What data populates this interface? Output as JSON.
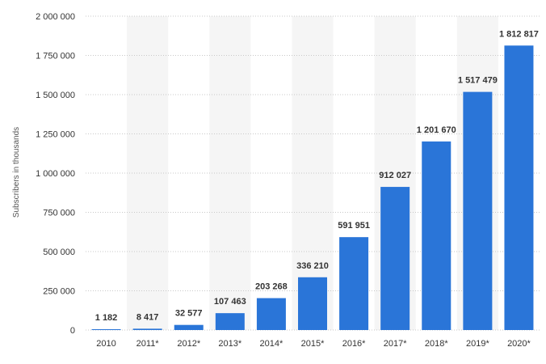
{
  "chart_data": {
    "type": "bar",
    "ylabel": "Subscribers in thousands",
    "xlabel": "",
    "ylim": [
      0,
      2000000
    ],
    "yticks": [
      0,
      250000,
      500000,
      750000,
      1000000,
      1250000,
      1500000,
      1750000,
      2000000
    ],
    "ytick_labels": [
      "0",
      "250 000",
      "500 000",
      "750 000",
      "1 000 000",
      "1 250 000",
      "1 500 000",
      "1 750 000",
      "2 000 000"
    ],
    "categories": [
      "2010",
      "2011*",
      "2012*",
      "2013*",
      "2014*",
      "2015*",
      "2016*",
      "2017*",
      "2018*",
      "2019*",
      "2020*"
    ],
    "values": [
      1182,
      8417,
      32577,
      107463,
      203268,
      336210,
      591951,
      912027,
      1201670,
      1517479,
      1812817
    ],
    "value_labels": [
      "1 182",
      "8 417",
      "32 577",
      "107 463",
      "203 268",
      "336 210",
      "591 951",
      "912 027",
      "1 201 670",
      "1 517 479",
      "1 812 817"
    ],
    "bar_color": "#2a75d8",
    "grid": true,
    "grid_style": "dotted",
    "alternating_column_shading": true,
    "legend": "none"
  }
}
